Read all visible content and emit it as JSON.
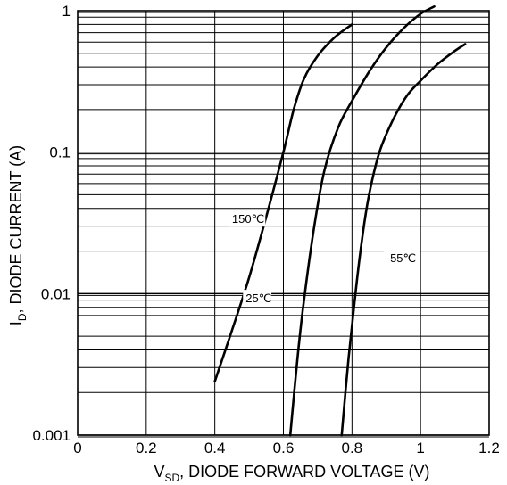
{
  "chart_data": {
    "type": "line",
    "xlabel": {
      "prefix": "V",
      "sub": "SD",
      "suffix": ", DIODE FORWARD VOLTAGE (V)"
    },
    "ylabel": {
      "prefix": "I",
      "sub": "D",
      "suffix": ", DIODE CURRENT (A)"
    },
    "xlim": [
      0,
      1.2
    ],
    "ylim": [
      0.001,
      1
    ],
    "yscale": "log",
    "x_ticks": [
      0,
      0.2,
      0.4,
      0.6,
      0.8,
      1,
      1.2
    ],
    "x_tick_labels": [
      "0",
      "0.2",
      "0.4",
      "0.6",
      "0.8",
      "1",
      "1.2"
    ],
    "y_ticks": [
      0.001,
      0.01,
      0.1,
      1
    ],
    "y_tick_labels": [
      "0.001",
      "0.01",
      "0.1",
      "1"
    ],
    "grid": true,
    "series": [
      {
        "name": "150℃",
        "points": [
          [
            0.4,
            0.0024
          ],
          [
            0.45,
            0.0055
          ],
          [
            0.5,
            0.013
          ],
          [
            0.55,
            0.035
          ],
          [
            0.6,
            0.1
          ],
          [
            0.63,
            0.2
          ],
          [
            0.66,
            0.33
          ],
          [
            0.7,
            0.48
          ],
          [
            0.75,
            0.65
          ],
          [
            0.8,
            0.8
          ]
        ]
      },
      {
        "name": "25℃",
        "points": [
          [
            0.62,
            0.001
          ],
          [
            0.64,
            0.0033
          ],
          [
            0.66,
            0.009
          ],
          [
            0.69,
            0.03
          ],
          [
            0.72,
            0.075
          ],
          [
            0.76,
            0.15
          ],
          [
            0.8,
            0.23
          ],
          [
            0.85,
            0.37
          ],
          [
            0.9,
            0.55
          ],
          [
            0.95,
            0.75
          ],
          [
            1.0,
            0.95
          ],
          [
            1.04,
            1.07
          ]
        ]
      },
      {
        "name": "-55℃",
        "points": [
          [
            0.77,
            0.001
          ],
          [
            0.79,
            0.0035
          ],
          [
            0.81,
            0.01
          ],
          [
            0.83,
            0.025
          ],
          [
            0.85,
            0.05
          ],
          [
            0.88,
            0.1
          ],
          [
            0.92,
            0.17
          ],
          [
            0.96,
            0.25
          ],
          [
            1.0,
            0.32
          ],
          [
            1.05,
            0.42
          ],
          [
            1.1,
            0.52
          ],
          [
            1.13,
            0.58
          ]
        ]
      }
    ],
    "annotations": [
      {
        "text": "150℃",
        "series": 0,
        "x": 0.45,
        "y": 0.032
      },
      {
        "text": "25℃",
        "series": 1,
        "x": 0.49,
        "y": 0.0088
      },
      {
        "text": "-55℃",
        "series": 2,
        "x": 0.9,
        "y": 0.017
      }
    ]
  }
}
